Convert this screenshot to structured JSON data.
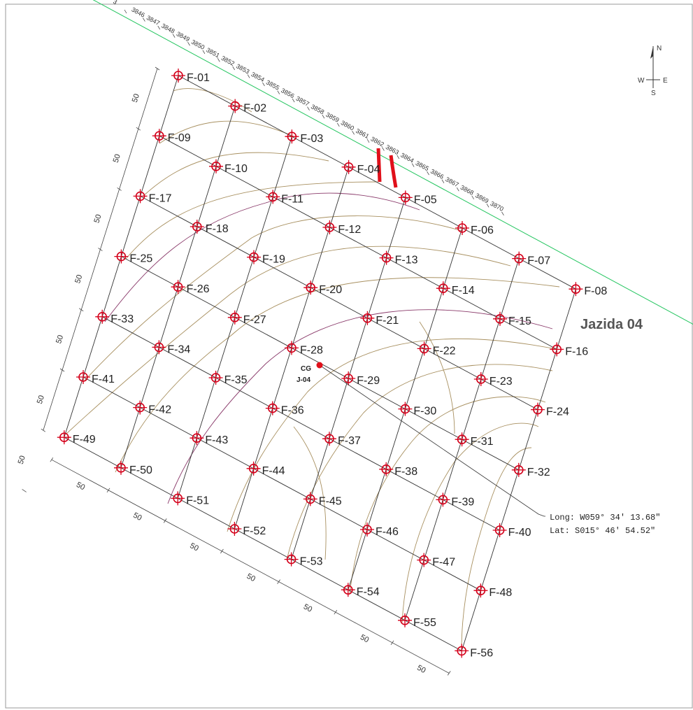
{
  "title": "Jazida 04",
  "compass": {
    "n": "N",
    "s": "S",
    "w": "W",
    "e": "E"
  },
  "center_point": {
    "label_top": "CG",
    "label_bottom": "J-04"
  },
  "coordinates": {
    "long": "Long: W059° 34' 13.68\"",
    "lat": "Lat: S015° 46' 54.52\""
  },
  "stations": [
    "3",
    "3846",
    "3847",
    "3848",
    "3849",
    "3850",
    "3851",
    "3852",
    "3853",
    "3854",
    "3855",
    "3856",
    "3857",
    "3858",
    "3859",
    "3860",
    "3861",
    "3862",
    "3863",
    "3864",
    "3865",
    "3866",
    "3867",
    "3868",
    "3869",
    "3870"
  ],
  "borehole_labels": [
    "F-01",
    "F-02",
    "F-03",
    "F-04",
    "F-05",
    "F-06",
    "F-07",
    "F-08",
    "F-09",
    "F-10",
    "F-11",
    "F-12",
    "F-13",
    "F-14",
    "F-15",
    "F-16",
    "F-17",
    "F-18",
    "F-19",
    "F-20",
    "F-21",
    "F-22",
    "F-23",
    "F-24",
    "F-25",
    "F-26",
    "F-27",
    "F-28",
    "F-29",
    "F-30",
    "F-31",
    "F-32",
    "F-33",
    "F-34",
    "F-35",
    "F-36",
    "F-37",
    "F-38",
    "F-39",
    "F-40",
    "F-41",
    "F-42",
    "F-43",
    "F-44",
    "F-45",
    "F-46",
    "F-47",
    "F-48",
    "F-49",
    "F-50",
    "F-51",
    "F-52",
    "F-53",
    "F-54",
    "F-55",
    "F-56"
  ],
  "side_dimensions": [
    "50",
    "50",
    "50",
    "50",
    "50",
    "50",
    "50"
  ],
  "bottom_dimensions": [
    "50",
    "50",
    "50",
    "50",
    "50",
    "50",
    "50"
  ],
  "colors": {
    "borehole": "#d4001a",
    "grid": "#333333",
    "road": "#22c55e",
    "contour": "#a89060",
    "contour_alt": "#8a3a6a",
    "marker": "#e0101a"
  }
}
